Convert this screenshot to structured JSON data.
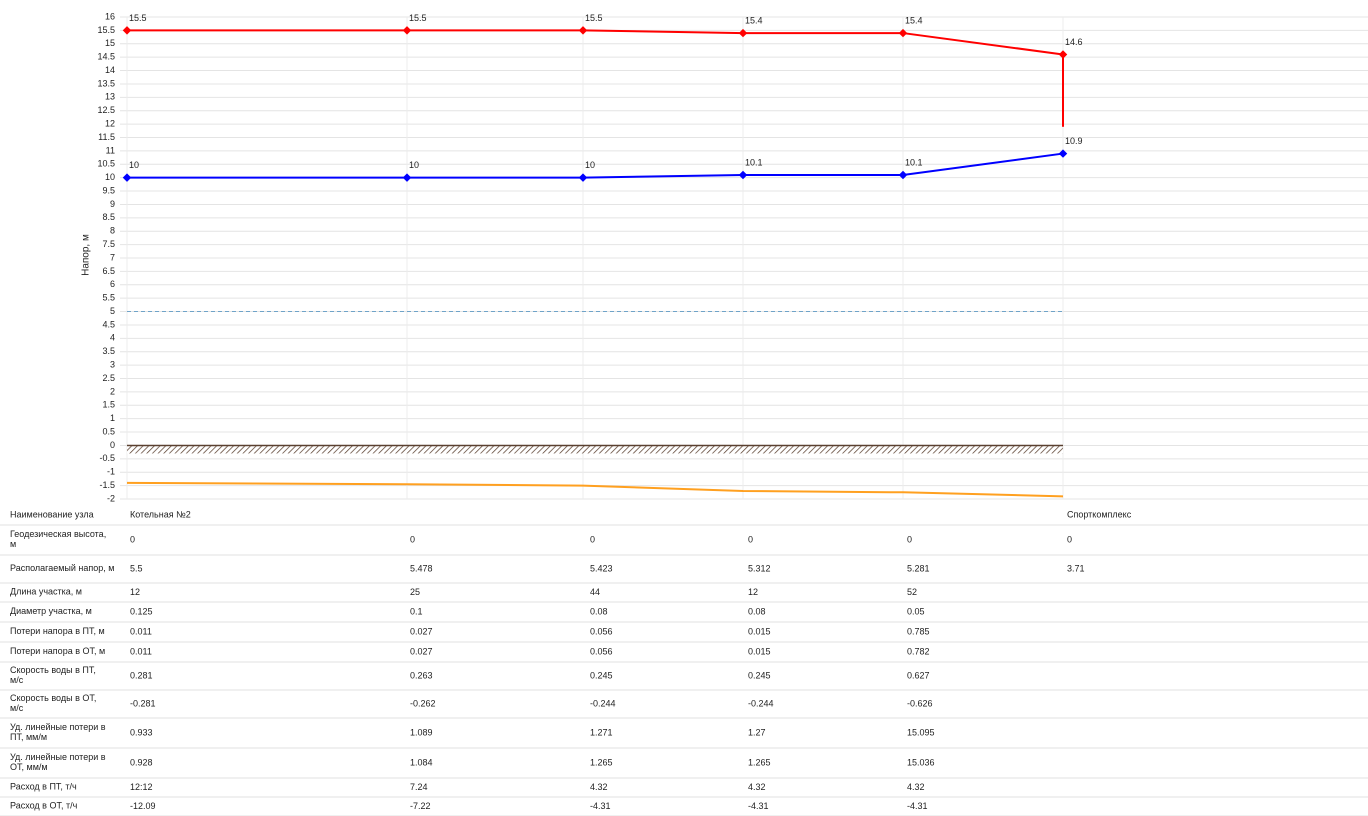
{
  "chart_data": {
    "type": "line",
    "ylabel": "Напор, м",
    "categories": [
      "Котельная №2",
      null,
      null,
      null,
      null,
      "Спорткомплекс"
    ],
    "ylim": [
      -2,
      16
    ],
    "yticks": [
      -2,
      -1.5,
      -1,
      -0.5,
      0,
      0.5,
      1,
      1.5,
      2,
      2.5,
      3,
      3.5,
      4,
      4.5,
      5,
      5.5,
      6,
      6.5,
      7,
      7.5,
      8,
      8.5,
      9,
      9.5,
      10,
      10.5,
      11,
      11.5,
      12,
      12.5,
      13,
      13.5,
      14,
      14.5,
      15,
      15.5,
      16
    ],
    "grid": true,
    "series": [
      {
        "color": "#ff0000",
        "values": [
          15.5,
          15.5,
          15.5,
          15.4,
          15.4,
          14.6
        ],
        "tail": 11.9,
        "markers": true,
        "labels": true
      },
      {
        "color": "#0000ff",
        "values": [
          10,
          10,
          10,
          10.1,
          10.1,
          10.9
        ],
        "markers": true,
        "labels": true
      },
      {
        "color": "#ffa020",
        "values": [
          -1.4,
          -1.45,
          -1.5,
          -1.7,
          -1.75,
          -1.9
        ],
        "markers": false,
        "labels": false
      }
    ],
    "reference_line": {
      "value": 5,
      "color": "#6fa3c8"
    },
    "ground": {
      "value": 0,
      "color": "#5a4030"
    }
  },
  "table": {
    "header": "Наименование узла",
    "rows": [
      {
        "label": "Геодезическая высота, м",
        "cells": [
          "0",
          "0",
          "0",
          "0",
          "0",
          "0"
        ]
      },
      {
        "label": "Располагаемый напор, м",
        "cells": [
          "5.5",
          "5.478",
          "5.423",
          "5.312",
          "5.281",
          "3.71"
        ]
      },
      {
        "label": "Длина участка, м",
        "cells": [
          "12",
          "25",
          "44",
          "12",
          "52"
        ]
      },
      {
        "label": "Диаметр участка, м",
        "cells": [
          "0.125",
          "0.1",
          "0.08",
          "0.08",
          "0.05"
        ]
      },
      {
        "label": "Потери напора в ПТ, м",
        "cells": [
          "0.011",
          "0.027",
          "0.056",
          "0.015",
          "0.785"
        ]
      },
      {
        "label": "Потери напора в ОТ, м",
        "cells": [
          "0.011",
          "0.027",
          "0.056",
          "0.015",
          "0.782"
        ]
      },
      {
        "label": "Скорость воды в ПТ, м/с",
        "cells": [
          "0.281",
          "0.263",
          "0.245",
          "0.245",
          "0.627"
        ]
      },
      {
        "label": "Скорость воды в ОТ, м/с",
        "cells": [
          "-0.281",
          "-0.262",
          "-0.244",
          "-0.244",
          "-0.626"
        ]
      },
      {
        "label": "Уд. линейные потери в ПТ, мм/м",
        "cells": [
          "0.933",
          "1.089",
          "1.271",
          "1.27",
          "15.095"
        ]
      },
      {
        "label": "Уд. линейные потери в ОТ, мм/м",
        "cells": [
          "0.928",
          "1.084",
          "1.265",
          "1.265",
          "15.036"
        ]
      },
      {
        "label": "Расход в ПТ, т/ч",
        "cells": [
          "12:12",
          "7.24",
          "4.32",
          "4.32",
          "4.32"
        ]
      },
      {
        "label": "Расход в ОТ, т/ч",
        "cells": [
          "-12.09",
          "-7.22",
          "-4.31",
          "-4.31",
          "-4.31"
        ]
      }
    ]
  }
}
